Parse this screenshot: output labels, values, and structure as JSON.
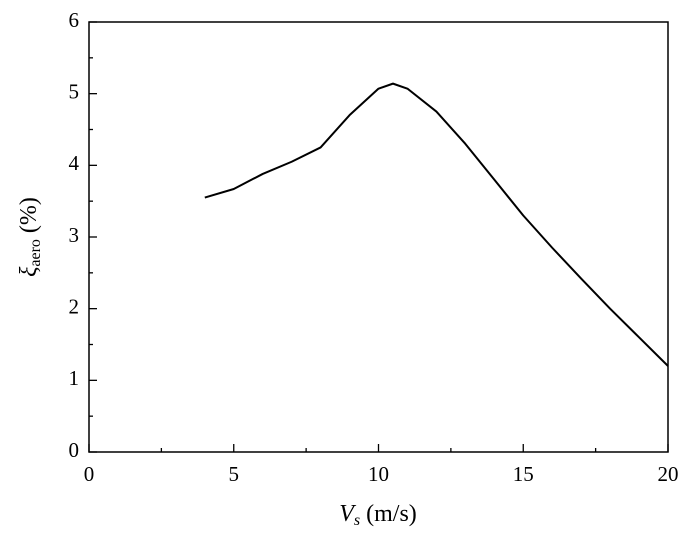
{
  "chart_data": {
    "type": "line",
    "xlabel": {
      "symbol": "V",
      "subscript": "s",
      "unit": "(m/s)"
    },
    "ylabel": {
      "symbol": "ξ",
      "subscript": "aero",
      "unit": "(%)"
    },
    "x": [
      4,
      5,
      6,
      7,
      8,
      9,
      10,
      10.5,
      11,
      12,
      13,
      14,
      15,
      16,
      17,
      18,
      19,
      20
    ],
    "series": [
      {
        "color": "#000000",
        "values": [
          3.55,
          3.67,
          3.88,
          4.05,
          4.25,
          4.7,
          5.07,
          5.14,
          5.07,
          4.75,
          4.3,
          3.8,
          3.3,
          2.85,
          2.42,
          2.0,
          1.6,
          1.2
        ]
      }
    ],
    "xlim": [
      0,
      20
    ],
    "xticks": [
      0,
      5,
      10,
      15,
      20
    ],
    "xminorticks": [
      2.5,
      7.5,
      12.5,
      17.5
    ],
    "ylim": [
      0,
      6
    ],
    "yticks": [
      0,
      1,
      2,
      3,
      4,
      5,
      6
    ],
    "yminorticks": [
      0.5,
      1.5,
      2.5,
      3.5,
      4.5,
      5.5
    ]
  }
}
